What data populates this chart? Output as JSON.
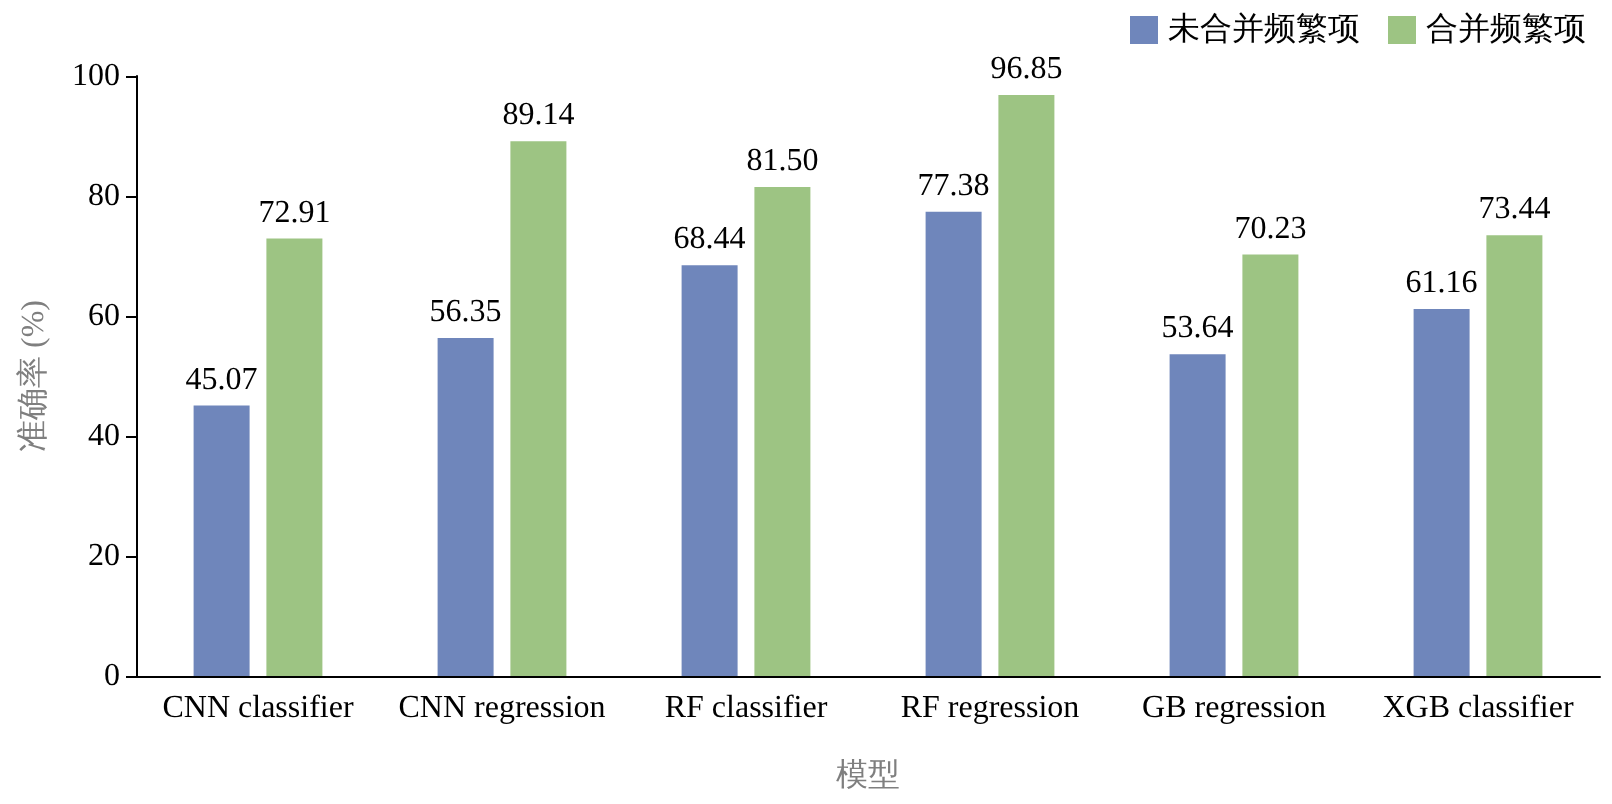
{
  "chart_data": {
    "type": "bar",
    "xlabel": "模型",
    "ylabel": "准确率 (%)",
    "categories": [
      "CNN classifier",
      "CNN regression",
      "RF classifier",
      "RF regression",
      "GB regression",
      "XGB classifier"
    ],
    "series": [
      {
        "name": "未合并频繁项",
        "color": "#6f86bb",
        "values": [
          45.07,
          56.35,
          68.44,
          77.38,
          53.64,
          61.16
        ],
        "value_labels": [
          "45.07",
          "56.35",
          "68.44",
          "77.38",
          "53.64",
          "61.16"
        ]
      },
      {
        "name": "合并频繁项",
        "color": "#9dc483",
        "values": [
          72.91,
          89.14,
          81.5,
          96.85,
          70.23,
          73.44
        ],
        "value_labels": [
          "72.91",
          "89.14",
          "81.50",
          "96.85",
          "70.23",
          "73.44"
        ]
      }
    ],
    "ylim": [
      0,
      100
    ],
    "yticks": [
      0,
      20,
      40,
      60,
      80,
      100
    ],
    "grid": false,
    "legend": "top right"
  }
}
